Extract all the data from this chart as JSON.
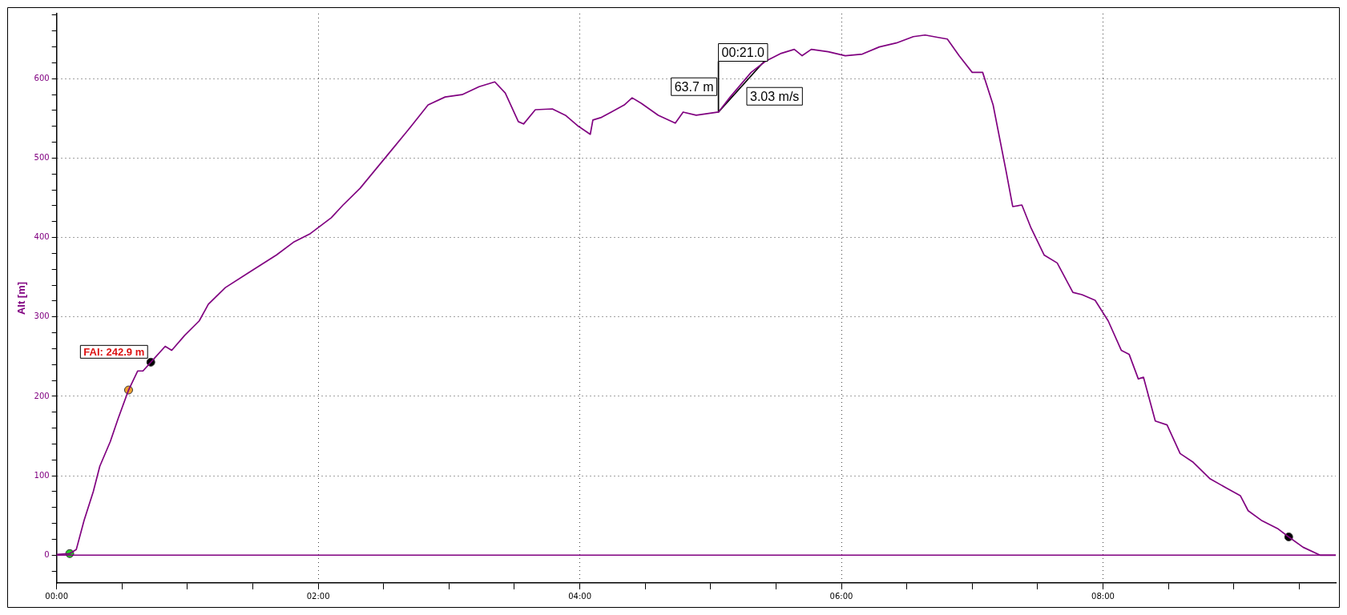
{
  "chart_data": {
    "type": "line",
    "ylabel": "Alt [m]",
    "xlim": [
      0,
      9.78
    ],
    "ylim": [
      -35,
      682
    ],
    "xticks": [
      {
        "value": 0,
        "label": "00:00"
      },
      {
        "value": 0.5,
        "label": null
      },
      {
        "value": 1,
        "label": null
      },
      {
        "value": 1.5,
        "label": null
      },
      {
        "value": 2,
        "label": "02:00"
      },
      {
        "value": 2.5,
        "label": null
      },
      {
        "value": 3,
        "label": null
      },
      {
        "value": 3.5,
        "label": null
      },
      {
        "value": 4,
        "label": "04:00"
      },
      {
        "value": 4.5,
        "label": null
      },
      {
        "value": 5,
        "label": null
      },
      {
        "value": 5.5,
        "label": null
      },
      {
        "value": 6,
        "label": "06:00"
      },
      {
        "value": 6.5,
        "label": null
      },
      {
        "value": 7,
        "label": null
      },
      {
        "value": 7.5,
        "label": null
      },
      {
        "value": 8,
        "label": "08:00"
      },
      {
        "value": 8.5,
        "label": null
      },
      {
        "value": 9,
        "label": null
      },
      {
        "value": 9.5,
        "label": null
      }
    ],
    "yticks": [
      {
        "value": -20,
        "label": null
      },
      0,
      {
        "value": 20,
        "label": null
      },
      {
        "value": 40,
        "label": null
      },
      {
        "value": 60,
        "label": null
      },
      {
        "value": 80,
        "label": null
      },
      100,
      {
        "value": 120,
        "label": null
      },
      {
        "value": 140,
        "label": null
      },
      {
        "value": 160,
        "label": null
      },
      {
        "value": 180,
        "label": null
      },
      200,
      {
        "value": 220,
        "label": null
      },
      {
        "value": 240,
        "label": null
      },
      {
        "value": 260,
        "label": null
      },
      {
        "value": 280,
        "label": null
      },
      300,
      {
        "value": 320,
        "label": null
      },
      {
        "value": 340,
        "label": null
      },
      {
        "value": 360,
        "label": null
      },
      {
        "value": 380,
        "label": null
      },
      400,
      {
        "value": 420,
        "label": null
      },
      {
        "value": 440,
        "label": null
      },
      {
        "value": 460,
        "label": null
      },
      {
        "value": 480,
        "label": null
      },
      500,
      {
        "value": 520,
        "label": null
      },
      {
        "value": 540,
        "label": null
      },
      {
        "value": 560,
        "label": null
      },
      {
        "value": 580,
        "label": null
      },
      600,
      {
        "value": 620,
        "label": null
      },
      {
        "value": 640,
        "label": null
      },
      {
        "value": 660,
        "label": null
      },
      {
        "value": 680,
        "label": null
      }
    ],
    "grid": true,
    "legend": false,
    "marker": "none",
    "line_style": "solid",
    "ref_lines": [
      {
        "axis": "y",
        "value": 0,
        "color": "#800080"
      }
    ],
    "series": [
      {
        "color": "#800080",
        "x": [
          0,
          0.1,
          0.15,
          0.21,
          0.28,
          0.33,
          0.41,
          0.47,
          0.55,
          0.62,
          0.66,
          0.72,
          0.83,
          0.88,
          0.98,
          1.09,
          1.16,
          1.29,
          1.48,
          1.68,
          1.81,
          1.94,
          2.1,
          2.19,
          2.32,
          2.45,
          2.58,
          2.71,
          2.84,
          2.97,
          3.1,
          3.23,
          3.35,
          3.43,
          3.53,
          3.57,
          3.66,
          3.79,
          3.89,
          3.99,
          4.08,
          4.1,
          4.16,
          4.24,
          4.34,
          4.4,
          4.47,
          4.6,
          4.73,
          4.79,
          4.89,
          5.06,
          5.15,
          5.31,
          5.42,
          5.54,
          5.64,
          5.7,
          5.77,
          5.9,
          6.03,
          6.16,
          6.29,
          6.42,
          6.55,
          6.64,
          6.74,
          6.81,
          6.9,
          7,
          7.08,
          7.16,
          7.26,
          7.31,
          7.38,
          7.45,
          7.55,
          7.65,
          7.77,
          7.84,
          7.94,
          8.04,
          8.14,
          8.2,
          8.27,
          8.31,
          8.4,
          8.49,
          8.59,
          8.69,
          8.82,
          8.95,
          9.05,
          9.11,
          9.21,
          9.34,
          9.42,
          9.53,
          9.66,
          9.78
        ],
        "values": [
          1,
          2,
          7,
          44,
          80,
          112,
          143,
          172,
          208,
          232,
          232,
          243,
          263,
          258,
          277,
          295,
          316,
          337,
          357,
          378,
          394,
          405,
          425,
          441,
          462,
          488,
          514,
          540,
          567,
          577,
          580,
          590,
          596,
          582,
          546,
          543,
          561,
          562,
          554,
          540,
          530,
          548,
          551,
          558,
          567,
          576,
          569,
          554,
          544,
          558,
          554,
          558,
          577,
          608,
          622,
          632,
          637,
          629,
          637,
          634,
          629,
          631,
          640,
          645,
          653,
          655,
          652,
          650,
          629,
          608,
          608,
          567,
          483,
          439,
          441,
          412,
          378,
          368,
          331,
          328,
          321,
          295,
          258,
          253,
          222,
          224,
          169,
          164,
          128,
          117,
          96,
          84,
          75,
          56,
          44,
          33,
          23,
          10,
          0,
          0
        ]
      },
      {
        "type": "line",
        "color": "#000000",
        "x": [
          5.41,
          5.06,
          5.06
        ],
        "values": [
          622,
          558,
          622
        ]
      },
      {
        "type": "scatter",
        "color": "#22cc22",
        "x": [
          0.1
        ],
        "values": [
          2
        ],
        "marker": "circle"
      },
      {
        "type": "scatter",
        "color": "#f0a030",
        "x": [
          0.55
        ],
        "values": [
          208
        ],
        "marker": "circle"
      },
      {
        "type": "scatter",
        "color": "#000000",
        "x": [
          0.72
        ],
        "values": [
          243
        ],
        "marker": "circle"
      },
      {
        "type": "scatter",
        "color": "#000000",
        "x": [
          9.42
        ],
        "values": [
          23
        ],
        "marker": "circle"
      }
    ],
    "annotations": [
      {
        "text": "FAI: 242.9 m",
        "x": 0.72,
        "y": 243
      },
      {
        "text": "00:21.0",
        "x": 5.06,
        "y": 622
      },
      {
        "text": "63.7 m",
        "x": 5.06,
        "y": 590
      },
      {
        "text": "3.03 m/s",
        "x": 5.24,
        "y": 590
      }
    ]
  }
}
